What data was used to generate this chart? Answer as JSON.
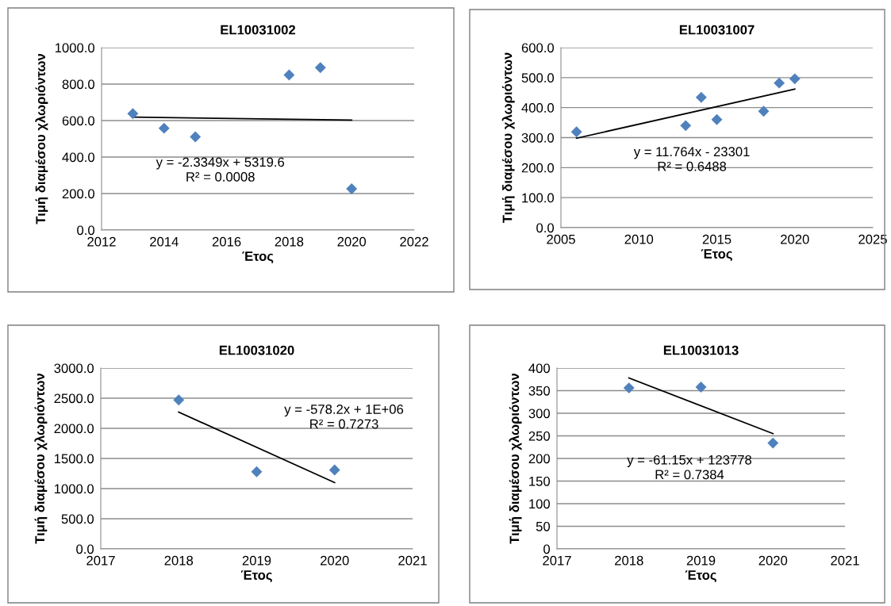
{
  "chart_data": [
    {
      "type": "scatter",
      "title": "EL10031002",
      "xlabel": "Έτος",
      "ylabel": "Τιμή διαμέσου χλωριόντων",
      "marker": "diamond",
      "grid": "y",
      "xlim": [
        2012,
        2022
      ],
      "xticks": [
        2012,
        2014,
        2016,
        2018,
        2020,
        2022
      ],
      "ylim": [
        0,
        1000
      ],
      "yticks": [
        {
          "value": 0,
          "label": "0.0"
        },
        {
          "value": 200,
          "label": "200.0"
        },
        {
          "value": 400,
          "label": "400.0"
        },
        {
          "value": 600,
          "label": "600.0"
        },
        {
          "value": 800,
          "label": "800.0"
        },
        {
          "value": 1000,
          "label": "1000.0"
        }
      ],
      "series": [
        {
          "color": "#4f81bd",
          "x": [
            2013,
            2014,
            2015,
            2018,
            2019,
            2020
          ],
          "values": [
            638,
            558,
            511,
            850,
            890,
            226
          ]
        },
        {
          "type": "line",
          "color": "#000000",
          "marker": "none",
          "x": [
            2013,
            2020
          ],
          "values": [
            619,
            603
          ]
        }
      ],
      "annotations": [
        "y = -2.3349x + 5319.6",
        "R² = 0.0008"
      ]
    },
    {
      "type": "scatter",
      "title": "EL10031007",
      "xlabel": "Έτος",
      "ylabel": "Τιμή διαμέσου χλωριόντων",
      "marker": "diamond",
      "grid": "y",
      "xlim": [
        2005,
        2025
      ],
      "xticks": [
        2005,
        2010,
        2015,
        2020,
        2025
      ],
      "ylim": [
        0,
        600
      ],
      "yticks": [
        {
          "value": 0,
          "label": "0.0"
        },
        {
          "value": 100,
          "label": "100.0"
        },
        {
          "value": 200,
          "label": "200.0"
        },
        {
          "value": 300,
          "label": "300.0"
        },
        {
          "value": 400,
          "label": "400.0"
        },
        {
          "value": 500,
          "label": "500.0"
        },
        {
          "value": 600,
          "label": "600.0"
        }
      ],
      "series": [
        {
          "color": "#4f81bd",
          "x": [
            2006,
            2013,
            2014,
            2015,
            2018,
            2019,
            2020
          ],
          "values": [
            319,
            340,
            434,
            360,
            388,
            482,
            496
          ]
        },
        {
          "type": "line",
          "color": "#000000",
          "marker": "none",
          "x": [
            2006,
            2020
          ],
          "values": [
            298,
            462
          ]
        }
      ],
      "annotations": [
        "y = 11.764x - 23301",
        "R² = 0.6488"
      ]
    },
    {
      "type": "scatter",
      "title": "EL10031020",
      "xlabel": "Έτος",
      "ylabel": "Τιμή διαμέσου χλωριόντων",
      "marker": "diamond",
      "grid": "y",
      "xlim": [
        2017,
        2021
      ],
      "xticks": [
        2017,
        2018,
        2019,
        2020,
        2021
      ],
      "ylim": [
        0,
        3000
      ],
      "yticks": [
        {
          "value": 0,
          "label": "0.0"
        },
        {
          "value": 500,
          "label": "500.0"
        },
        {
          "value": 1000,
          "label": "1000.0"
        },
        {
          "value": 1500,
          "label": "1500.0"
        },
        {
          "value": 2000,
          "label": "2000.0"
        },
        {
          "value": 2500,
          "label": "2500.0"
        },
        {
          "value": 3000,
          "label": "3000.0"
        }
      ],
      "series": [
        {
          "color": "#4f81bd",
          "x": [
            2018,
            2019,
            2020
          ],
          "values": [
            2470,
            1280,
            1310
          ]
        },
        {
          "type": "line",
          "color": "#000000",
          "marker": "none",
          "x": [
            2018,
            2020
          ],
          "values": [
            2270,
            1100
          ]
        }
      ],
      "annotations": [
        "y = -578.2x + 1E+06",
        "R² = 0.7273"
      ]
    },
    {
      "type": "scatter",
      "title": "EL10031013",
      "xlabel": "Έτος",
      "ylabel": "Τιμή διαμέσου χλωριόντων",
      "marker": "diamond",
      "grid": "y",
      "xlim": [
        2017,
        2021
      ],
      "xticks": [
        2017,
        2018,
        2019,
        2020,
        2021
      ],
      "ylim": [
        0,
        400
      ],
      "yticks": [
        0,
        50,
        100,
        150,
        200,
        250,
        300,
        350,
        400
      ],
      "series": [
        {
          "color": "#4f81bd",
          "x": [
            2018,
            2019,
            2020
          ],
          "values": [
            356,
            358,
            234
          ]
        },
        {
          "type": "line",
          "color": "#000000",
          "marker": "none",
          "x": [
            2018,
            2020
          ],
          "values": [
            378,
            255
          ]
        }
      ],
      "annotations": [
        "y = -61.15x + 123778",
        "R² = 0.7384"
      ]
    }
  ]
}
